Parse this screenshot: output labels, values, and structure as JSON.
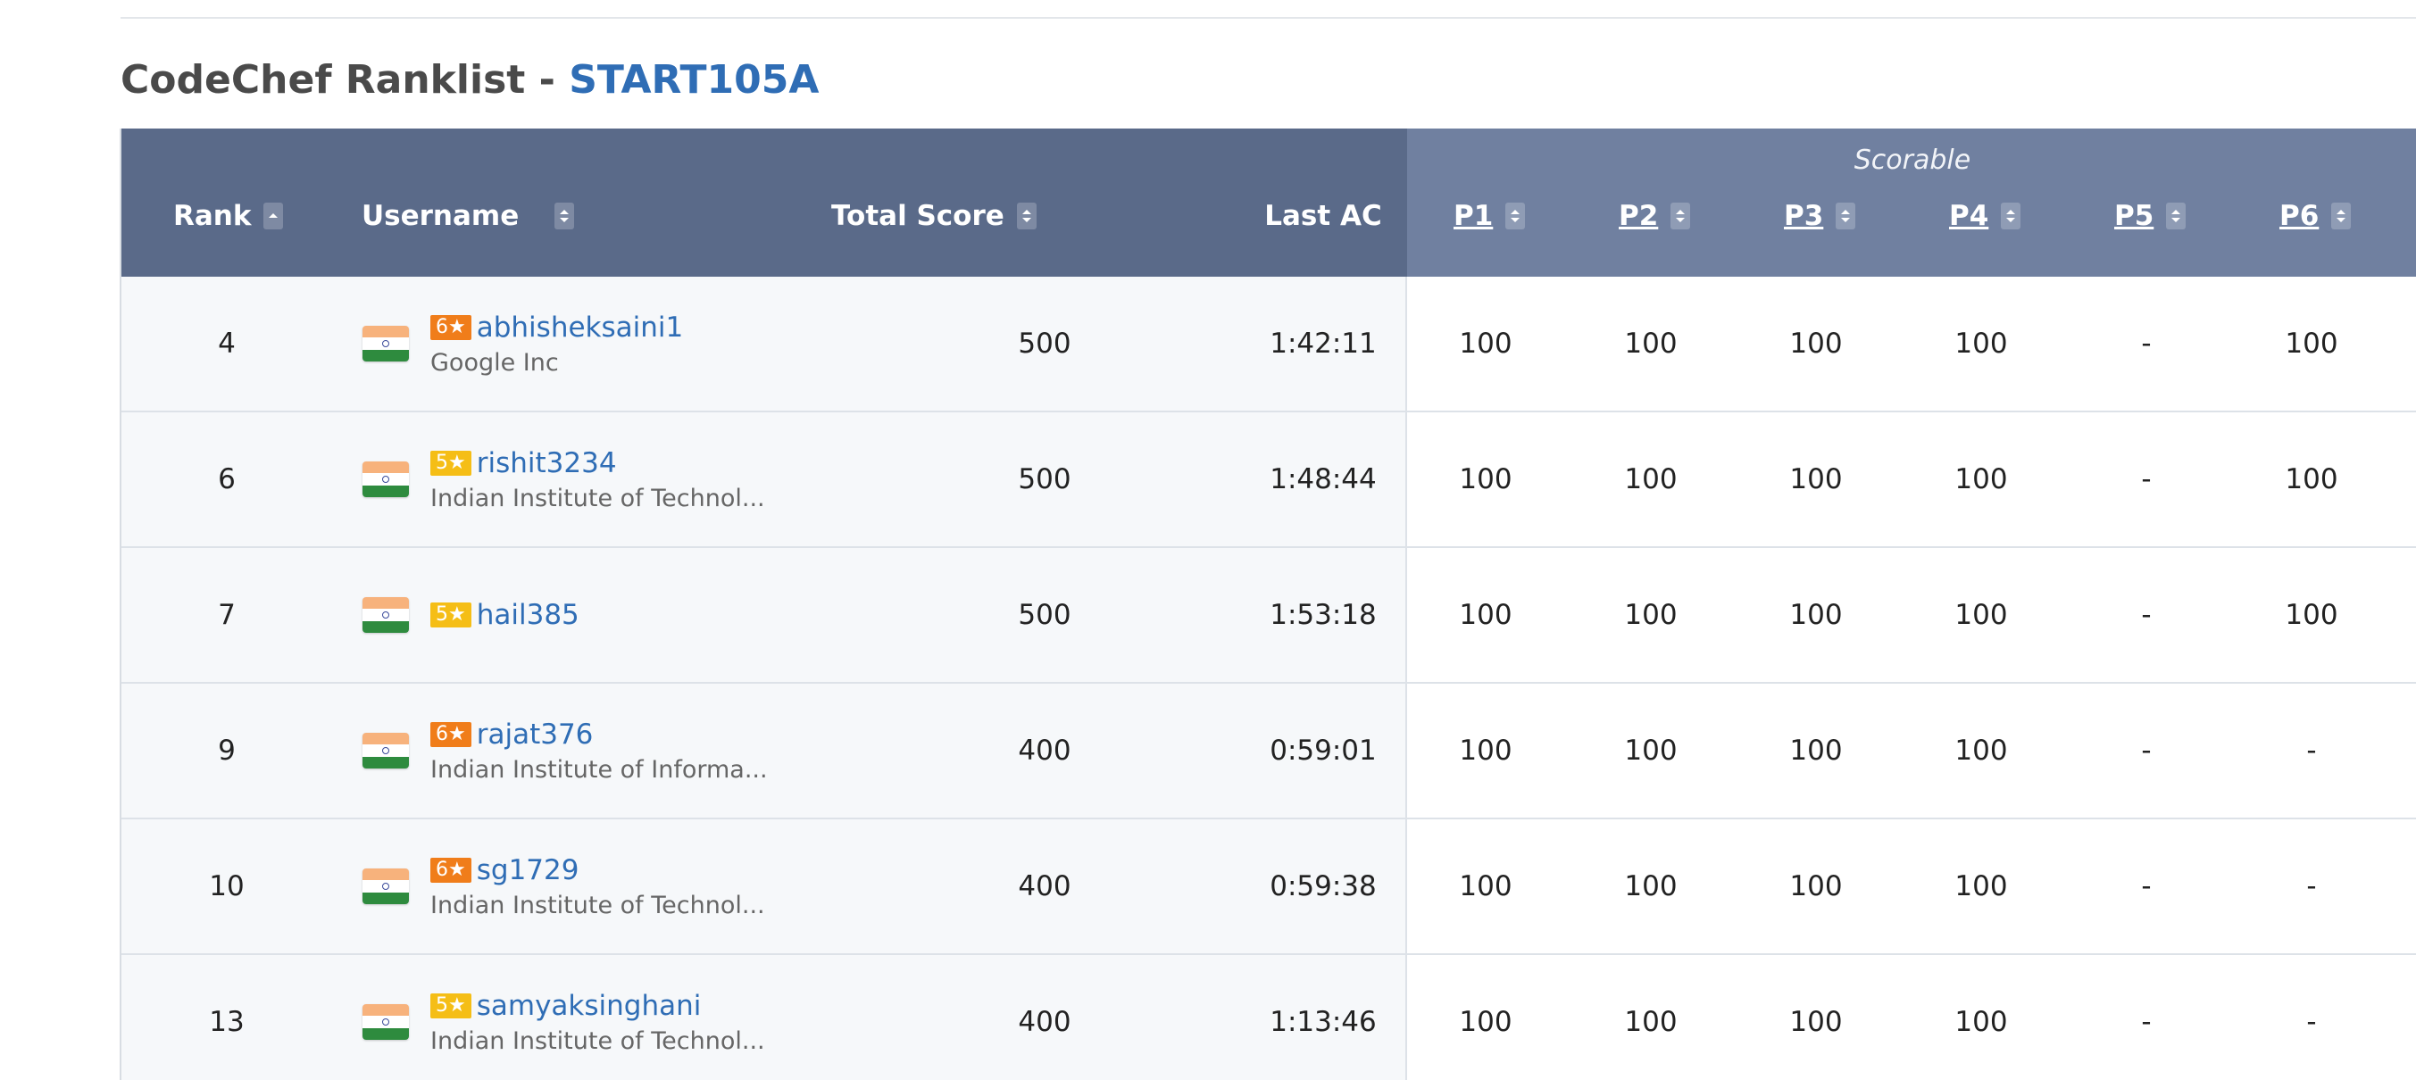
{
  "title": {
    "prefix": "CodeChef Ranklist - ",
    "contest": "START105A"
  },
  "columns": {
    "rank": "Rank",
    "username": "Username",
    "total_score": "Total Score",
    "last_ac": "Last AC",
    "scorable": "Scorable",
    "problems": [
      "P1",
      "P2",
      "P3",
      "P4",
      "P5",
      "P6"
    ]
  },
  "colors": {
    "header_left": "#5a6a89",
    "header_right": "#7080a0",
    "star_6": "#f07d1a",
    "star_5": "#f5be16",
    "link": "#2f6db5"
  },
  "rows": [
    {
      "rank": "4",
      "stars": "6★",
      "star_level": 6,
      "username": "abhisheksaini1",
      "org": "Google Inc",
      "total": "500",
      "last_ac": "1:42:11",
      "scores": [
        "100",
        "100",
        "100",
        "100",
        "-",
        "100"
      ]
    },
    {
      "rank": "6",
      "stars": "5★",
      "star_level": 5,
      "username": "rishit3234",
      "org": "Indian Institute of Technol...",
      "total": "500",
      "last_ac": "1:48:44",
      "scores": [
        "100",
        "100",
        "100",
        "100",
        "-",
        "100"
      ]
    },
    {
      "rank": "7",
      "stars": "5★",
      "star_level": 5,
      "username": "hail385",
      "org": "",
      "total": "500",
      "last_ac": "1:53:18",
      "scores": [
        "100",
        "100",
        "100",
        "100",
        "-",
        "100"
      ]
    },
    {
      "rank": "9",
      "stars": "6★",
      "star_level": 6,
      "username": "rajat376",
      "org": "Indian Institute of Informa...",
      "total": "400",
      "last_ac": "0:59:01",
      "scores": [
        "100",
        "100",
        "100",
        "100",
        "-",
        "-"
      ]
    },
    {
      "rank": "10",
      "stars": "6★",
      "star_level": 6,
      "username": "sg1729",
      "org": "Indian Institute of Technol...",
      "total": "400",
      "last_ac": "0:59:38",
      "scores": [
        "100",
        "100",
        "100",
        "100",
        "-",
        "-"
      ]
    },
    {
      "rank": "13",
      "stars": "5★",
      "star_level": 5,
      "username": "samyaksinghani",
      "org": "Indian Institute of Technol...",
      "total": "400",
      "last_ac": "1:13:46",
      "scores": [
        "100",
        "100",
        "100",
        "100",
        "-",
        "-"
      ]
    }
  ]
}
